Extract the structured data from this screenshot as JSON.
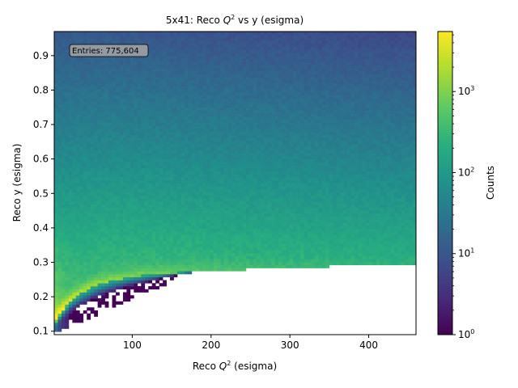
{
  "chart_data": {
    "type": "heatmap",
    "title_prefix": "5x41: Reco ",
    "title_suffix": " vs y (esigma)",
    "xlabel_prefix": "Reco ",
    "xlabel_suffix": " (esigma)",
    "q2_symbol": "Q",
    "q2_sup": "2",
    "ylabel": "Reco y (esigma)",
    "colorbar_label": "Counts",
    "xlim": [
      1,
      460
    ],
    "ylim": [
      0.09,
      0.97
    ],
    "x_ticks": [
      100,
      200,
      300,
      400
    ],
    "y_ticks": [
      0.1,
      0.2,
      0.3,
      0.4,
      0.5,
      0.6,
      0.7,
      0.8,
      0.9
    ],
    "color_scale": "log",
    "color_range": [
      1,
      5500
    ],
    "colorbar_ticks": [
      {
        "base": "10",
        "exp": "0",
        "value": 1
      },
      {
        "base": "10",
        "exp": "1",
        "value": 10
      },
      {
        "base": "10",
        "exp": "2",
        "value": 100
      },
      {
        "base": "10",
        "exp": "3",
        "value": 1000
      }
    ],
    "colormap": "viridis",
    "annotation": "Entries: 775,604",
    "bins": {
      "nx": 100,
      "ny": 100
    },
    "grid": false
  }
}
